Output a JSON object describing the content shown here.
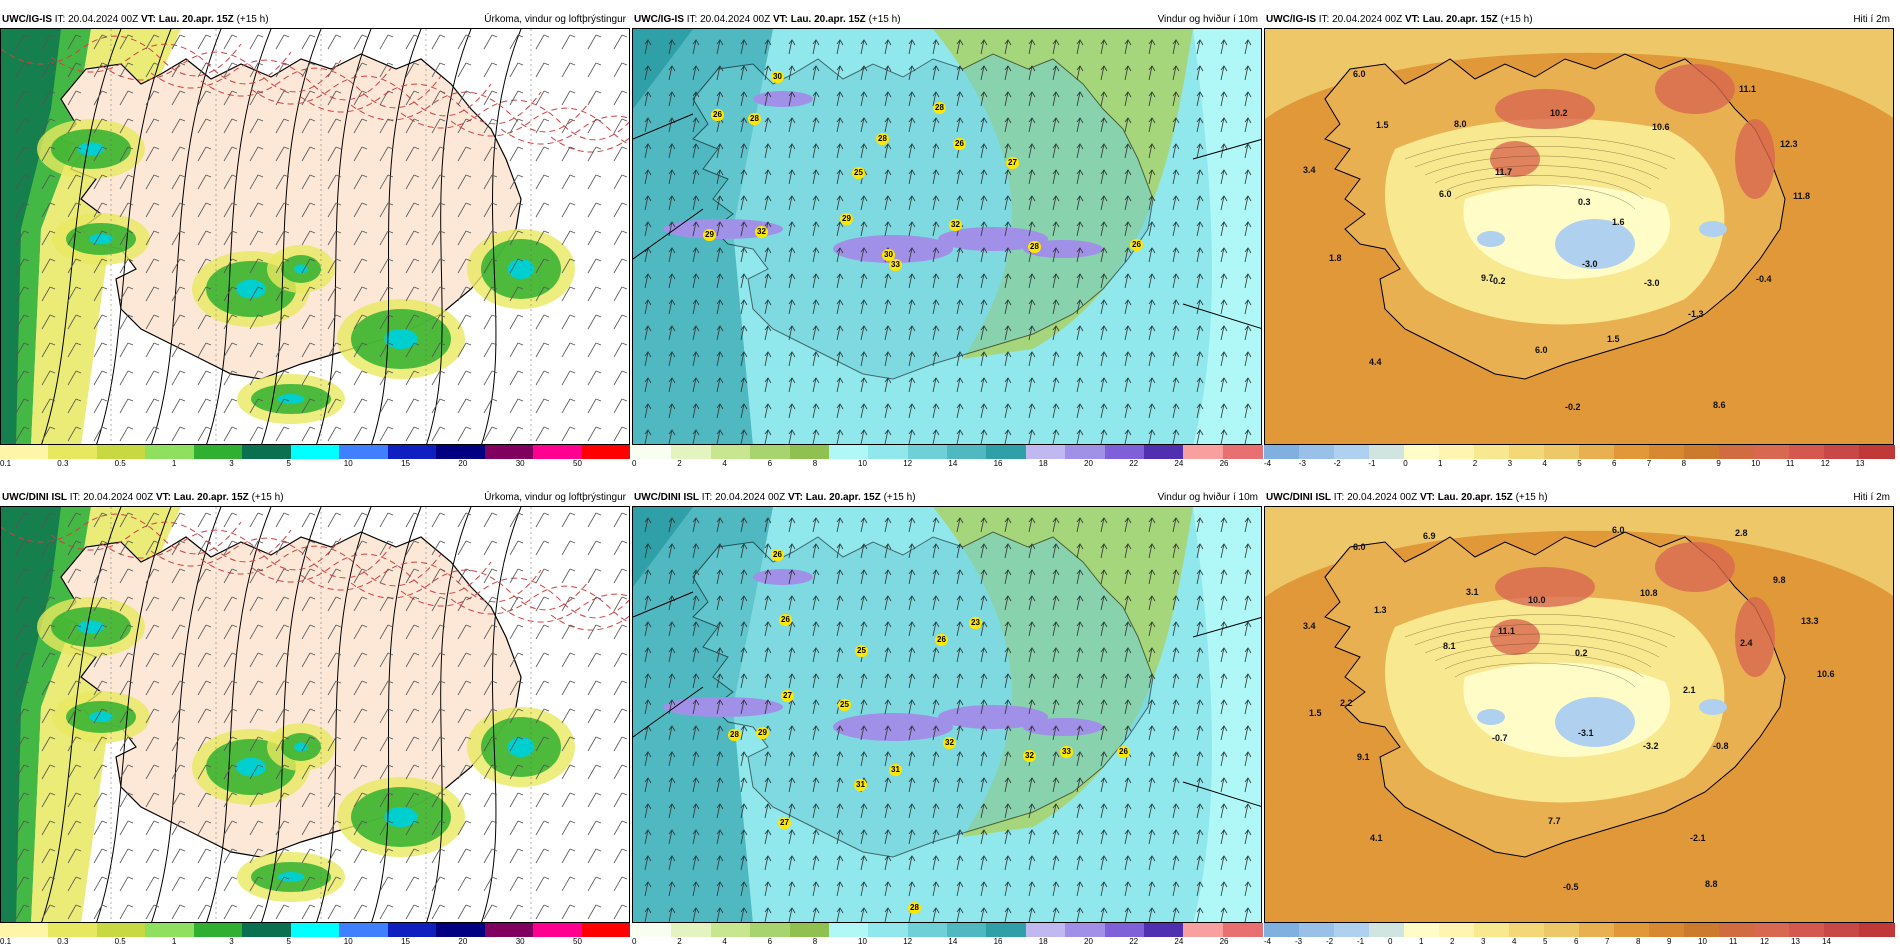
{
  "panels": [
    {
      "id": "igis-precip",
      "model": "UWC/IG-IS",
      "it_label": "IT:",
      "it": "20.04.2024 00Z",
      "vt_label": "VT:",
      "vt": "Lau. 20.apr. 15Z",
      "offset": "(+15 h)",
      "title": "Úrkoma, vindur og loftþrýstingur",
      "kind": "precip"
    },
    {
      "id": "igis-wind",
      "model": "UWC/IG-IS",
      "it_label": "IT:",
      "it": "20.04.2024 00Z",
      "vt_label": "VT:",
      "vt": "Lau. 20.apr. 15Z",
      "offset": "(+15 h)",
      "title": "Vindur og hviður í 10m",
      "kind": "wind",
      "gusts": [
        "30",
        "26",
        "28",
        "28",
        "26",
        "28",
        "27",
        "25",
        "29",
        "29",
        "32",
        "30",
        "32",
        "33",
        "28",
        "26"
      ]
    },
    {
      "id": "igis-temp",
      "model": "UWC/IG-IS",
      "it_label": "IT:",
      "it": "20.04.2024 00Z",
      "vt_label": "VT:",
      "vt": "Lau. 20.apr. 15Z",
      "offset": "(+15 h)",
      "title": "Hiti í 2m",
      "kind": "temp",
      "values": [
        "6.0",
        "1.5",
        "8.0",
        "10.2",
        "10.6",
        "11.1",
        "3.4",
        "6.0",
        "11.7",
        "12.3",
        "0.3",
        "11.8",
        "1.6",
        "1.8",
        "9.7",
        "-0.2",
        "-3.0",
        "-3.0",
        "-0.4",
        "-1.3",
        "1.5",
        "6.0",
        "4.4",
        "-0.2",
        "8.6"
      ]
    },
    {
      "id": "dini-precip",
      "model": "UWC/DINI ISL",
      "it_label": "IT:",
      "it": "20.04.2024 00Z",
      "vt_label": "VT:",
      "vt": "Lau. 20.apr. 15Z",
      "offset": "(+15 h)",
      "title": "Úrkoma, vindur og loftþrýstingur",
      "kind": "precip"
    },
    {
      "id": "dini-wind",
      "model": "UWC/DINI ISL",
      "it_label": "IT:",
      "it": "20.04.2024 00Z",
      "vt_label": "VT:",
      "vt": "Lau. 20.apr. 15Z",
      "offset": "(+15 h)",
      "title": "Vindur og hviður í 10m",
      "kind": "wind",
      "gusts": [
        "26",
        "26",
        "23",
        "25",
        "26",
        "27",
        "25",
        "28",
        "29",
        "32",
        "31",
        "31",
        "32",
        "33",
        "26",
        "27",
        "28"
      ]
    },
    {
      "id": "dini-temp",
      "model": "UWC/DINI ISL",
      "it_label": "IT:",
      "it": "20.04.2024 00Z",
      "vt_label": "VT:",
      "vt": "Lau. 20.apr. 15Z",
      "offset": "(+15 h)",
      "title": "Hiti í 2m",
      "kind": "temp",
      "values": [
        "6.0",
        "6.9",
        "6.0",
        "2.8",
        "3.1",
        "1.3",
        "10.0",
        "10.8",
        "9.8",
        "3.4",
        "8.1",
        "11.1",
        "0.2",
        "2.4",
        "13.3",
        "10.6",
        "1.5",
        "2.2",
        "2.1",
        "-0.7",
        "-3.1",
        "-3.2",
        "-0.8",
        "9.1",
        "7.7",
        "4.1",
        "-2.1",
        "-0.5",
        "8.8"
      ]
    }
  ],
  "colorbars": {
    "precip": {
      "ticks": [
        "0.1",
        "0.3",
        "0.5",
        "1",
        "3",
        "5",
        "10",
        "15",
        "20",
        "30",
        "50"
      ],
      "colors": [
        "#fff5a8",
        "#e8e860",
        "#c8d840",
        "#90e060",
        "#30b030",
        "#0a7050",
        "#00ffff",
        "#4080ff",
        "#1020c0",
        "#000080",
        "#800060",
        "#ff0090",
        "#ff0000"
      ]
    },
    "wind": {
      "ticks": [
        "0",
        "2",
        "4",
        "6",
        "8",
        "10",
        "12",
        "14",
        "16",
        "18",
        "20",
        "22",
        "24",
        "26"
      ],
      "colors": [
        "#f8fff0",
        "#e4f4c0",
        "#c8e690",
        "#a8d470",
        "#90c050",
        "#b0f8f8",
        "#90e8ec",
        "#70d0d8",
        "#50b8c0",
        "#30a0a8",
        "#c0b8f0",
        "#a090e8",
        "#8060d8",
        "#5030b0",
        "#f8a0a0",
        "#e87070"
      ]
    },
    "temp": {
      "ticks": [
        "-4",
        "-3",
        "-2",
        "-1",
        "0",
        "1",
        "2",
        "3",
        "4",
        "5",
        "6",
        "7",
        "8",
        "9",
        "10",
        "11",
        "12",
        "13"
      ],
      "colors": [
        "#80b0e0",
        "#98c0e8",
        "#b0d0f0",
        "#d0e4e0",
        "#fffcc8",
        "#fff4b0",
        "#f8e890",
        "#f4d878",
        "#eec868",
        "#e8b050",
        "#e09838",
        "#d88830",
        "#cc7a2c",
        "#d06c40",
        "#d86850",
        "#d45850",
        "#c84848",
        "#c03838"
      ]
    },
    "temp2_ticks": [
      "-4",
      "-3",
      "-2",
      "-1",
      "0",
      "1",
      "2",
      "3",
      "4",
      "5",
      "6",
      "7",
      "8",
      "9",
      "10",
      "11",
      "12",
      "13",
      "14"
    ]
  }
}
